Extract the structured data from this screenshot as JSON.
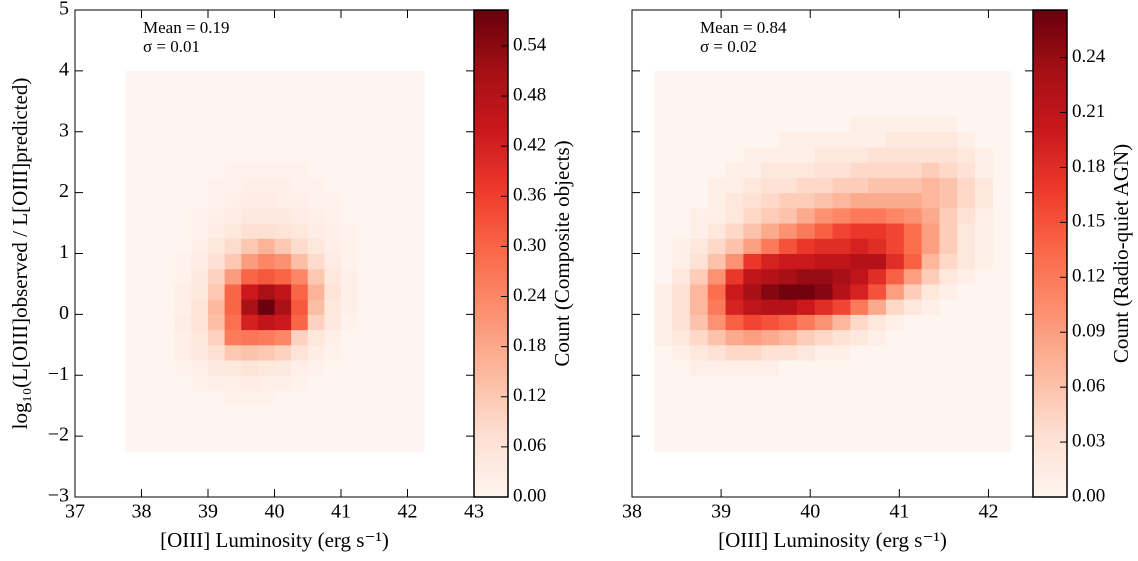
{
  "chart_data": [
    {
      "type": "hist2d",
      "xlabel": "[OIII] Luminosity (erg s⁻¹)",
      "ylabel": "log₁₀(L[OIII]observed / L[OIII]predicted)",
      "annotations": [
        "Mean = 0.19",
        "σ = 0.01"
      ],
      "xlim": [
        37,
        43
      ],
      "ylim": [
        -3,
        5
      ],
      "xticks": [
        37,
        38,
        39,
        40,
        41,
        42,
        43
      ],
      "yticks": [
        {
          "value": -3,
          "label": "−3"
        },
        {
          "value": -2,
          "label": "−2"
        },
        {
          "value": -1,
          "label": "−1"
        },
        0,
        1,
        2,
        3,
        4,
        5
      ],
      "ytick_labels": true,
      "xbins": [
        37.75,
        38.0,
        38.25,
        38.5,
        38.75,
        39.0,
        39.25,
        39.5,
        39.75,
        40.0,
        40.25,
        40.5,
        40.75,
        41.0,
        41.25,
        41.5,
        41.75,
        42.0,
        42.25
      ],
      "ybins": [
        -2.25,
        -2.0,
        -1.75,
        -1.5,
        -1.25,
        -1.0,
        -0.75,
        -0.5,
        -0.25,
        0.0,
        0.25,
        0.5,
        0.75,
        1.0,
        1.25,
        1.5,
        1.75,
        2.0,
        2.25,
        2.5,
        2.75,
        3.0,
        3.25,
        3.5,
        3.75,
        4.0
      ],
      "counts": [
        [
          0,
          0,
          0,
          0,
          0,
          0,
          0,
          0,
          0,
          0,
          0,
          0,
          0,
          0,
          0,
          0,
          0,
          0
        ],
        [
          0,
          0,
          0,
          0,
          0,
          0,
          0,
          0,
          0,
          0,
          0,
          0,
          0,
          0,
          0,
          0,
          0,
          0
        ],
        [
          0,
          0,
          0,
          0,
          0,
          0,
          0,
          0,
          0,
          0,
          0,
          0,
          0,
          0,
          0,
          0,
          0,
          0
        ],
        [
          0,
          0,
          0,
          0,
          0,
          0,
          0.01,
          0.01,
          0.01,
          0,
          0,
          0,
          0,
          0,
          0,
          0,
          0,
          0
        ],
        [
          0,
          0,
          0,
          0,
          0.01,
          0.02,
          0.02,
          0.03,
          0.02,
          0.02,
          0.01,
          0,
          0,
          0,
          0,
          0,
          0,
          0
        ],
        [
          0,
          0,
          0,
          0.01,
          0.02,
          0.04,
          0.05,
          0.06,
          0.05,
          0.04,
          0.02,
          0.01,
          0,
          0,
          0,
          0,
          0,
          0
        ],
        [
          0,
          0,
          0,
          0.02,
          0.04,
          0.07,
          0.12,
          0.13,
          0.12,
          0.1,
          0.06,
          0.03,
          0.01,
          0,
          0,
          0,
          0,
          0
        ],
        [
          0,
          0,
          0,
          0.02,
          0.05,
          0.1,
          0.26,
          0.27,
          0.26,
          0.24,
          0.1,
          0.05,
          0.02,
          0,
          0,
          0,
          0,
          0
        ],
        [
          0,
          0,
          0,
          0.03,
          0.06,
          0.14,
          0.28,
          0.42,
          0.46,
          0.44,
          0.3,
          0.1,
          0.04,
          0.01,
          0,
          0,
          0,
          0
        ],
        [
          0,
          0,
          0,
          0.02,
          0.06,
          0.15,
          0.3,
          0.5,
          0.58,
          0.5,
          0.32,
          0.14,
          0.05,
          0.02,
          0,
          0,
          0,
          0
        ],
        [
          0,
          0,
          0,
          0.02,
          0.05,
          0.12,
          0.3,
          0.44,
          0.5,
          0.46,
          0.3,
          0.16,
          0.06,
          0.02,
          0,
          0,
          0,
          0
        ],
        [
          0,
          0,
          0,
          0.01,
          0.04,
          0.1,
          0.2,
          0.3,
          0.32,
          0.3,
          0.24,
          0.12,
          0.05,
          0.02,
          0,
          0,
          0,
          0
        ],
        [
          0,
          0,
          0,
          0.01,
          0.03,
          0.07,
          0.12,
          0.2,
          0.24,
          0.22,
          0.14,
          0.08,
          0.03,
          0.01,
          0,
          0,
          0,
          0
        ],
        [
          0,
          0,
          0,
          0,
          0.02,
          0.05,
          0.08,
          0.12,
          0.16,
          0.12,
          0.08,
          0.05,
          0.02,
          0.01,
          0,
          0,
          0,
          0
        ],
        [
          0,
          0,
          0,
          0,
          0.01,
          0.03,
          0.05,
          0.07,
          0.07,
          0.06,
          0.05,
          0.03,
          0.02,
          0.01,
          0,
          0,
          0,
          0
        ],
        [
          0,
          0,
          0,
          0,
          0.01,
          0.02,
          0.03,
          0.04,
          0.04,
          0.04,
          0.03,
          0.02,
          0.01,
          0,
          0,
          0,
          0,
          0
        ],
        [
          0,
          0,
          0,
          0,
          0,
          0.01,
          0.02,
          0.03,
          0.03,
          0.02,
          0.02,
          0.01,
          0.01,
          0,
          0,
          0,
          0,
          0
        ],
        [
          0,
          0,
          0,
          0,
          0,
          0.01,
          0.01,
          0.02,
          0.02,
          0.02,
          0.01,
          0.01,
          0,
          0,
          0,
          0,
          0,
          0
        ],
        [
          0,
          0,
          0,
          0,
          0,
          0,
          0.01,
          0.01,
          0.01,
          0.01,
          0.01,
          0,
          0,
          0,
          0,
          0,
          0,
          0
        ],
        [
          0,
          0,
          0,
          0,
          0,
          0,
          0,
          0,
          0,
          0,
          0,
          0,
          0,
          0,
          0,
          0,
          0,
          0
        ],
        [
          0,
          0,
          0,
          0,
          0,
          0,
          0,
          0,
          0,
          0,
          0,
          0,
          0,
          0,
          0,
          0,
          0,
          0
        ],
        [
          0,
          0,
          0,
          0,
          0,
          0,
          0,
          0,
          0,
          0,
          0,
          0,
          0,
          0,
          0,
          0,
          0,
          0
        ],
        [
          0,
          0,
          0,
          0,
          0,
          0,
          0,
          0,
          0,
          0,
          0,
          0,
          0,
          0,
          0,
          0,
          0,
          0
        ],
        [
          0,
          0,
          0,
          0,
          0,
          0,
          0,
          0,
          0,
          0,
          0,
          0,
          0,
          0,
          0,
          0,
          0,
          0
        ],
        [
          0,
          0,
          0,
          0,
          0,
          0,
          0,
          0,
          0,
          0,
          0,
          0,
          0,
          0,
          0,
          0,
          0,
          0
        ]
      ],
      "colorbar_label": "Count (Composite objects)",
      "clim": [
        0,
        0.583
      ],
      "cticks": [
        {
          "value": 0,
          "label": "0.00"
        },
        {
          "value": 0.06,
          "label": "0.06"
        },
        {
          "value": 0.12,
          "label": "0.12"
        },
        {
          "value": 0.18,
          "label": "0.18"
        },
        {
          "value": 0.24,
          "label": "0.24"
        },
        {
          "value": 0.3,
          "label": "0.30"
        },
        {
          "value": 0.36,
          "label": "0.36"
        },
        {
          "value": 0.42,
          "label": "0.42"
        },
        {
          "value": 0.48,
          "label": "0.48"
        },
        {
          "value": 0.54,
          "label": "0.54"
        }
      ],
      "colormap": [
        "#fff5f0",
        "#fee0d2",
        "#fcbba1",
        "#fc9272",
        "#fb6a4a",
        "#ef3b2c",
        "#cb181d",
        "#a50f15",
        "#67000d"
      ]
    },
    {
      "type": "hist2d",
      "xlabel": "[OIII] Luminosity (erg s⁻¹)",
      "annotations": [
        "Mean = 0.84",
        "σ = 0.02"
      ],
      "xlim": [
        38,
        42.5
      ],
      "ylim": [
        -3,
        5
      ],
      "xticks": [
        38,
        39,
        40,
        41,
        42
      ],
      "yticks": [
        -3,
        -2,
        -1,
        0,
        1,
        2,
        3,
        4,
        5
      ],
      "ytick_labels": false,
      "xbins": [
        38.25,
        38.45,
        38.65,
        38.85,
        39.05,
        39.25,
        39.45,
        39.65,
        39.85,
        40.05,
        40.25,
        40.45,
        40.65,
        40.85,
        41.05,
        41.25,
        41.45,
        41.65,
        41.85,
        42.05,
        42.25
      ],
      "ybins": [
        -2.25,
        -2.0,
        -1.75,
        -1.5,
        -1.25,
        -1.0,
        -0.75,
        -0.5,
        -0.25,
        0.0,
        0.25,
        0.5,
        0.75,
        1.0,
        1.25,
        1.5,
        1.75,
        2.0,
        2.25,
        2.5,
        2.75,
        3.0,
        3.25,
        3.5,
        3.75,
        4.0
      ],
      "counts": [
        [
          0,
          0,
          0,
          0,
          0,
          0,
          0,
          0,
          0,
          0,
          0,
          0,
          0,
          0,
          0,
          0,
          0,
          0,
          0,
          0
        ],
        [
          0,
          0,
          0,
          0,
          0,
          0,
          0,
          0,
          0,
          0,
          0,
          0,
          0,
          0,
          0,
          0,
          0,
          0,
          0,
          0
        ],
        [
          0,
          0,
          0,
          0,
          0,
          0,
          0,
          0,
          0,
          0,
          0,
          0,
          0,
          0,
          0,
          0,
          0,
          0,
          0,
          0
        ],
        [
          0,
          0,
          0,
          0,
          0,
          0,
          0,
          0,
          0,
          0,
          0,
          0,
          0,
          0,
          0,
          0,
          0,
          0,
          0,
          0
        ],
        [
          0,
          0,
          0,
          0,
          0,
          0,
          0,
          0,
          0,
          0,
          0,
          0,
          0,
          0,
          0,
          0,
          0,
          0,
          0,
          0
        ],
        [
          0,
          0,
          0.01,
          0.01,
          0.01,
          0.01,
          0.01,
          0,
          0,
          0,
          0,
          0,
          0,
          0,
          0,
          0,
          0,
          0,
          0,
          0
        ],
        [
          0,
          0.01,
          0.02,
          0.03,
          0.04,
          0.04,
          0.03,
          0.03,
          0.02,
          0.01,
          0.01,
          0,
          0,
          0,
          0,
          0,
          0,
          0,
          0,
          0
        ],
        [
          0.01,
          0.02,
          0.04,
          0.06,
          0.08,
          0.09,
          0.08,
          0.07,
          0.05,
          0.04,
          0.03,
          0.02,
          0.01,
          0,
          0,
          0,
          0,
          0,
          0,
          0
        ],
        [
          0.01,
          0.03,
          0.06,
          0.1,
          0.14,
          0.16,
          0.15,
          0.14,
          0.12,
          0.1,
          0.07,
          0.04,
          0.02,
          0.01,
          0,
          0,
          0,
          0,
          0,
          0
        ],
        [
          0.01,
          0.03,
          0.07,
          0.12,
          0.19,
          0.21,
          0.22,
          0.22,
          0.2,
          0.18,
          0.16,
          0.12,
          0.08,
          0.04,
          0.02,
          0.01,
          0,
          0,
          0,
          0
        ],
        [
          0.01,
          0.03,
          0.07,
          0.13,
          0.2,
          0.23,
          0.25,
          0.26,
          0.26,
          0.25,
          0.22,
          0.19,
          0.15,
          0.09,
          0.05,
          0.02,
          0.01,
          0,
          0,
          0
        ],
        [
          0,
          0.02,
          0.05,
          0.1,
          0.17,
          0.21,
          0.22,
          0.23,
          0.24,
          0.24,
          0.23,
          0.21,
          0.18,
          0.14,
          0.09,
          0.05,
          0.02,
          0.01,
          0,
          0
        ],
        [
          0,
          0.01,
          0.03,
          0.06,
          0.1,
          0.17,
          0.19,
          0.2,
          0.2,
          0.21,
          0.21,
          0.22,
          0.22,
          0.18,
          0.14,
          0.07,
          0.04,
          0.02,
          0.01,
          0
        ],
        [
          0,
          0.01,
          0.02,
          0.04,
          0.06,
          0.09,
          0.12,
          0.15,
          0.17,
          0.18,
          0.18,
          0.19,
          0.18,
          0.16,
          0.13,
          0.09,
          0.05,
          0.02,
          0.01,
          0
        ],
        [
          0,
          0,
          0.01,
          0.02,
          0.04,
          0.06,
          0.08,
          0.1,
          0.12,
          0.14,
          0.16,
          0.17,
          0.17,
          0.16,
          0.13,
          0.09,
          0.05,
          0.02,
          0.01,
          0
        ],
        [
          0,
          0,
          0.01,
          0.01,
          0.02,
          0.04,
          0.05,
          0.06,
          0.08,
          0.1,
          0.11,
          0.12,
          0.12,
          0.11,
          0.1,
          0.08,
          0.05,
          0.03,
          0.01,
          0
        ],
        [
          0,
          0,
          0,
          0.01,
          0.02,
          0.03,
          0.04,
          0.05,
          0.05,
          0.06,
          0.07,
          0.08,
          0.08,
          0.08,
          0.08,
          0.07,
          0.06,
          0.04,
          0.02,
          0
        ],
        [
          0,
          0,
          0,
          0.01,
          0.01,
          0.02,
          0.03,
          0.03,
          0.04,
          0.04,
          0.05,
          0.05,
          0.06,
          0.06,
          0.06,
          0.07,
          0.06,
          0.04,
          0.02,
          0
        ],
        [
          0,
          0,
          0,
          0,
          0.01,
          0.01,
          0.02,
          0.02,
          0.02,
          0.03,
          0.03,
          0.04,
          0.04,
          0.04,
          0.04,
          0.05,
          0.04,
          0.03,
          0.01,
          0
        ],
        [
          0,
          0,
          0,
          0,
          0,
          0.01,
          0.01,
          0.01,
          0.01,
          0.02,
          0.02,
          0.02,
          0.03,
          0.03,
          0.03,
          0.03,
          0.03,
          0.02,
          0.01,
          0
        ],
        [
          0,
          0,
          0,
          0,
          0,
          0,
          0,
          0.01,
          0.01,
          0.01,
          0.01,
          0.01,
          0.01,
          0.02,
          0.02,
          0.02,
          0.02,
          0.01,
          0,
          0
        ],
        [
          0,
          0,
          0,
          0,
          0,
          0,
          0,
          0,
          0,
          0,
          0,
          0.01,
          0.01,
          0.01,
          0.01,
          0.01,
          0.01,
          0,
          0,
          0
        ],
        [
          0,
          0,
          0,
          0,
          0,
          0,
          0,
          0,
          0,
          0,
          0,
          0,
          0,
          0,
          0,
          0,
          0,
          0,
          0,
          0
        ],
        [
          0,
          0,
          0,
          0,
          0,
          0,
          0,
          0,
          0,
          0,
          0,
          0,
          0,
          0,
          0,
          0,
          0,
          0,
          0,
          0
        ],
        [
          0,
          0,
          0,
          0,
          0,
          0,
          0,
          0,
          0,
          0,
          0,
          0,
          0,
          0,
          0,
          0,
          0,
          0,
          0,
          0
        ]
      ],
      "colorbar_label": "Count (Radio-quiet AGN)",
      "clim": [
        0,
        0.266
      ],
      "cticks": [
        {
          "value": 0,
          "label": "0.00"
        },
        {
          "value": 0.03,
          "label": "0.03"
        },
        {
          "value": 0.06,
          "label": "0.06"
        },
        {
          "value": 0.09,
          "label": "0.09"
        },
        {
          "value": 0.12,
          "label": "0.12"
        },
        {
          "value": 0.15,
          "label": "0.15"
        },
        {
          "value": 0.18,
          "label": "0.18"
        },
        {
          "value": 0.21,
          "label": "0.21"
        },
        {
          "value": 0.24,
          "label": "0.24"
        }
      ],
      "colormap": [
        "#fff5f0",
        "#fee0d2",
        "#fcbba1",
        "#fc9272",
        "#fb6a4a",
        "#ef3b2c",
        "#cb181d",
        "#a50f15",
        "#67000d"
      ]
    }
  ]
}
